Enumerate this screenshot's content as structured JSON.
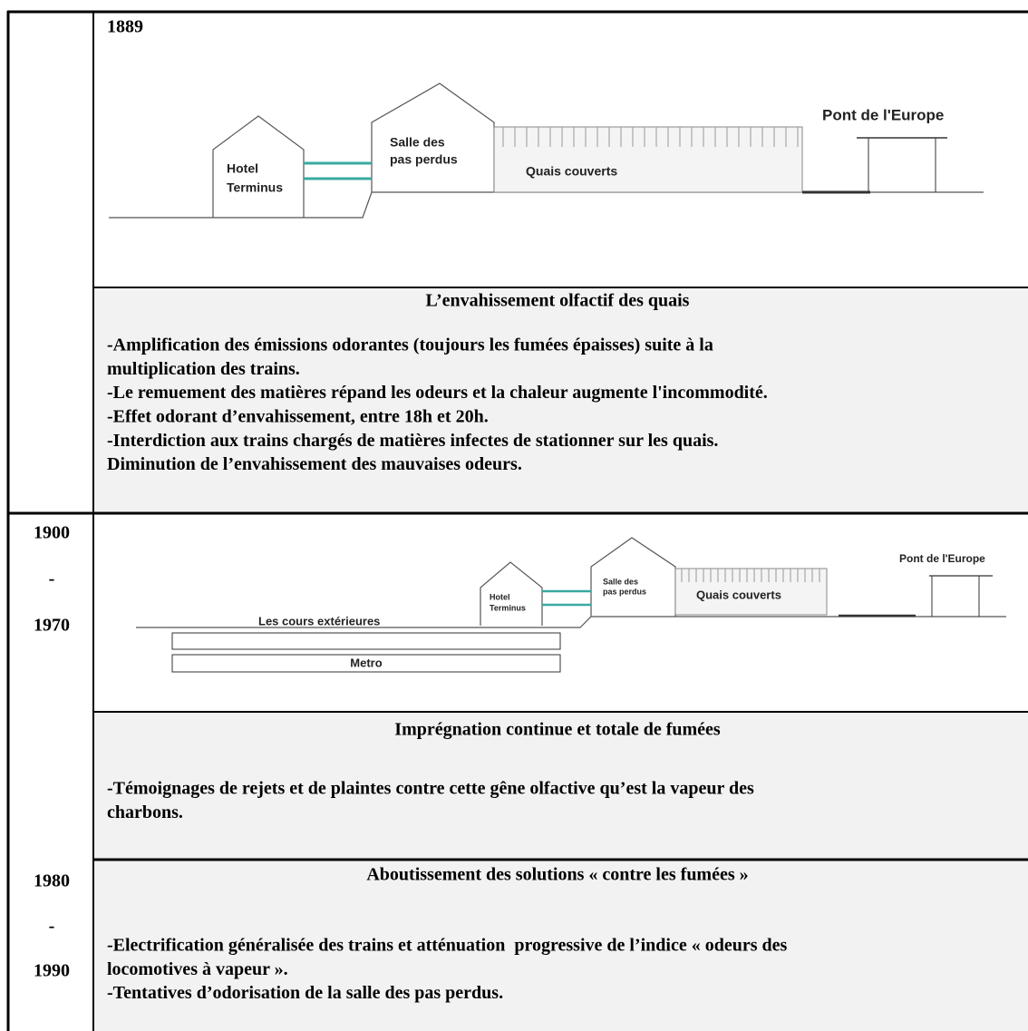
{
  "sections": [
    {
      "year": "1889",
      "diagram": {
        "hotel": [
          "Hotel",
          "Terminus"
        ],
        "hall": [
          "Salle des",
          "pas perdus"
        ],
        "platforms": "Quais couverts",
        "bridge": "Pont de l'Europe"
      },
      "heading": "L’envahissement olfactif des quais",
      "lines": [
        "-Amplification des émissions odorantes (toujours les fumées épaisses) suite à la",
        "multiplication des trains.",
        "-Le remuement des matières répand les odeurs et la chaleur augmente l'incommodité.",
        "-Effet odorant d’envahissement, entre 18h et 20h.",
        "-Interdiction aux trains chargés de matières infectes de stationner sur les quais.",
        "Diminution de l’envahissement des mauvaises odeurs."
      ]
    },
    {
      "years": [
        "1900",
        "-",
        "1970"
      ],
      "diagram": {
        "hotel": [
          "Hotel",
          "Terminus"
        ],
        "hall": [
          "Salle des",
          "pas perdus"
        ],
        "platforms": "Quais couverts",
        "bridge": "Pont de l'Europe",
        "courtyards": "Les cours extérieures",
        "metro": "Metro"
      },
      "heading": "Imprégnation continue et totale de fumées",
      "lines": [
        "-Témoignages de rejets et de plaintes contre cette gêne olfactive qu’est la vapeur des",
        "charbons."
      ]
    },
    {
      "years": [
        "1980",
        "-",
        "1990"
      ],
      "heading": "Aboutissement des solutions « contre les fumées »",
      "lines": [
        "-Electrification généralisée des trains et atténuation  progressive de l’indice « odeurs des",
        "locomotives à vapeur ».",
        "-Tentatives d’odorisation de la salle des pas perdus."
      ]
    }
  ]
}
